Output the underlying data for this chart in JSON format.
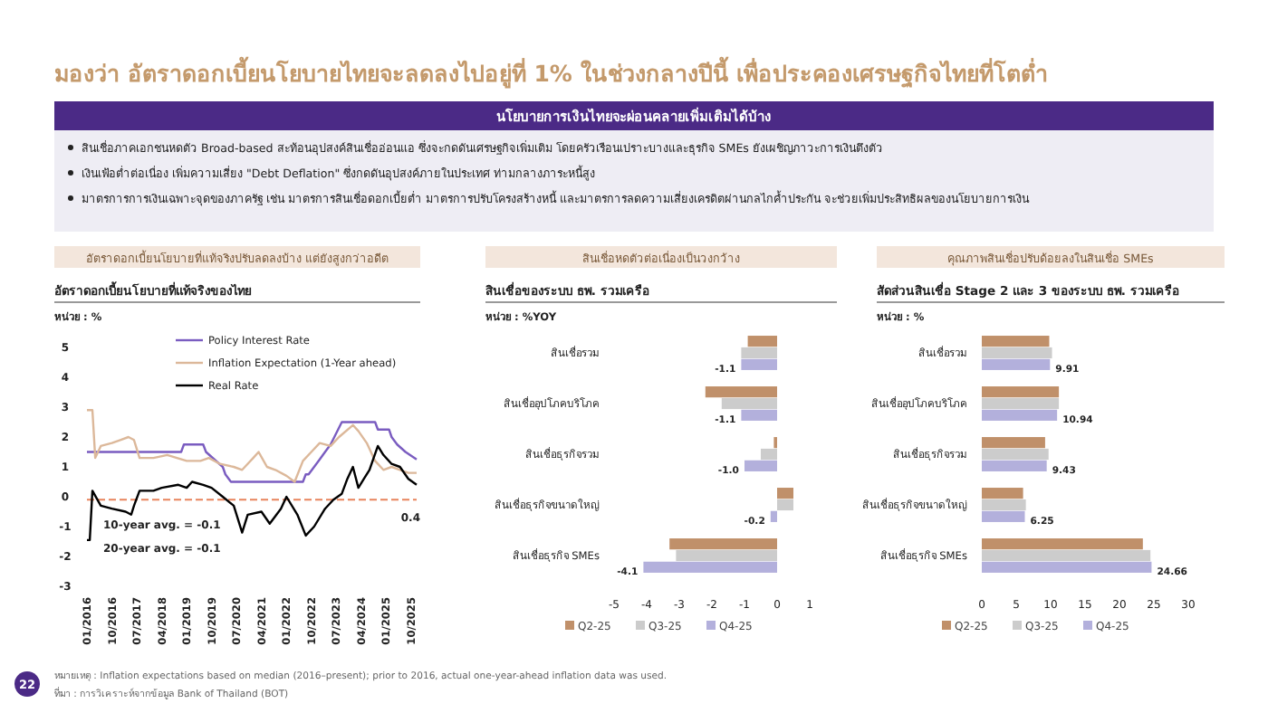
{
  "chart_data": [
    {
      "type": "other",
      "title": "มองว่า อัตราดอกเบี้ยนโยบายไทยจะลดลงไปอยู่ที่ 1% ในช่วงกลางปีนี้ เพื่อประคองเศรษฐกิจไทยที่โตต่ำ",
      "subtitle": "นโยบายการเงินไทยจะผ่อนคลายเพิ่มเติมได้บ้าง",
      "annotations": [
        "สินเชื่อภาคเอกชนหดตัว Broad-based สะท้อนอุปสงค์สินเชื่ออ่อนแอ ซึ่งจะกดดันเศรษฐกิจเพิ่มเติม โดยครัวเรือนเปราะบางและธุรกิจ SMEs ยังเผชิญภาวะการเงินตึงตัว",
        "เงินเฟ้อต่ำต่อเนื่อง เพิ่มความเสี่ยง \"Debt Deflation\" ซึ่งกดดันอุปสงค์ภายในประเทศ ท่ามกลางภาระหนี้สูง",
        "มาตรการการเงินเฉพาะจุดของภาครัฐ เช่น มาตรการสินเชื่อดอกเบี้ยต่ำ มาตรการปรับโครงสร้างหนี้ และมาตรการลดความเสี่ยงเครดิตผ่านกลไกค้ำประกัน จะช่วยเพิ่มประสิทธิผลของนโยบายการเงิน",
        "หมายเหตุ : Inflation expectations based on median (2016–present); prior to 2016, actual one-year-ahead inflation data was used.",
        "ที่มา : การวิเคราะห์จากข้อมูล Bank of Thailand (BOT)",
        "22"
      ]
    },
    {
      "type": "line",
      "title": "อัตราดอกเบี้ยนโยบายที่แท้จริงปรับลดลงบ้าง แต่ยังสูงกว่าอดีต",
      "subtitle": "อัตราดอกเบี้ยนโยบายที่แท้จริงของไทย",
      "ylabel": "หน่วย : %",
      "xlim": [
        "2016-01",
        "2025-12"
      ],
      "xticks": [
        {
          "value": "2016-01",
          "label": "01/2016"
        },
        {
          "value": "2016-10",
          "label": "10/2016"
        },
        {
          "value": "2017-07",
          "label": "07/2017"
        },
        {
          "value": "2018-04",
          "label": "04/2018"
        },
        {
          "value": "2019-01",
          "label": "01/2019"
        },
        {
          "value": "2019-10",
          "label": "10/2019"
        },
        {
          "value": "2020-07",
          "label": "07/2020"
        },
        {
          "value": "2021-04",
          "label": "04/2021"
        },
        {
          "value": "2022-01",
          "label": "01/2022"
        },
        {
          "value": "2022-10",
          "label": "10/2022"
        },
        {
          "value": "2023-07",
          "label": "07/2023"
        },
        {
          "value": "2024-04",
          "label": "04/2024"
        },
        {
          "value": "2025-01",
          "label": "01/2025"
        },
        {
          "value": "2025-10",
          "label": "10/2025"
        }
      ],
      "ylim": [
        -3,
        5
      ],
      "yticks": [
        -3,
        -2,
        -1,
        0,
        1,
        2,
        3,
        4,
        5
      ],
      "legend": "top right",
      "grid": false,
      "series": [
        {
          "name": "Policy Interest Rate",
          "color": "#7a5cc0",
          "x": [
            "2016-01",
            "2018-11",
            "2018-12",
            "2019-07",
            "2019-08",
            "2019-11",
            "2020-02",
            "2020-03",
            "2020-05",
            "2022-07",
            "2022-08",
            "2022-09",
            "2022-11",
            "2023-01",
            "2023-03",
            "2023-05",
            "2023-09",
            "2024-09",
            "2024-10",
            "2025-02",
            "2025-03",
            "2025-05",
            "2025-08",
            "2025-12"
          ],
          "values": [
            1.5,
            1.5,
            1.75,
            1.75,
            1.5,
            1.25,
            1.0,
            0.75,
            0.5,
            0.5,
            0.75,
            0.75,
            1.0,
            1.25,
            1.5,
            1.75,
            2.5,
            2.5,
            2.25,
            2.25,
            2.0,
            1.75,
            1.5,
            1.25
          ]
        },
        {
          "name": "Inflation Expectation (1-Year ahead)",
          "color": "#dcb89a",
          "x": [
            "2016-01",
            "2016-03",
            "2016-04",
            "2016-06",
            "2016-10",
            "2017-01",
            "2017-04",
            "2017-06",
            "2017-08",
            "2018-01",
            "2018-06",
            "2019-01",
            "2019-06",
            "2019-09",
            "2020-01",
            "2020-06",
            "2020-09",
            "2021-01",
            "2021-03",
            "2021-06",
            "2021-09",
            "2022-01",
            "2022-04",
            "2022-07",
            "2022-10",
            "2023-01",
            "2023-05",
            "2023-08",
            "2024-01",
            "2024-03",
            "2024-06",
            "2024-09",
            "2024-12",
            "2025-03",
            "2025-06",
            "2025-09",
            "2025-12"
          ],
          "values": [
            2.9,
            2.9,
            1.3,
            1.7,
            1.8,
            1.9,
            2.0,
            1.9,
            1.3,
            1.3,
            1.4,
            1.2,
            1.2,
            1.3,
            1.1,
            1.0,
            0.9,
            1.3,
            1.5,
            1.0,
            0.9,
            0.7,
            0.5,
            1.2,
            1.5,
            1.8,
            1.7,
            2.0,
            2.4,
            2.2,
            1.8,
            1.2,
            0.9,
            1.0,
            0.9,
            0.8,
            0.8
          ]
        },
        {
          "name": "Real Rate",
          "color": "#000000",
          "x": [
            "2016-01",
            "2016-02",
            "2016-03",
            "2016-06",
            "2016-10",
            "2017-03",
            "2017-05",
            "2017-06",
            "2017-08",
            "2018-01",
            "2018-04",
            "2018-10",
            "2019-01",
            "2019-03",
            "2019-07",
            "2019-10",
            "2020-02",
            "2020-06",
            "2020-09",
            "2020-11",
            "2021-04",
            "2021-07",
            "2021-11",
            "2022-01",
            "2022-05",
            "2022-08",
            "2022-11",
            "2023-03",
            "2023-06",
            "2023-09",
            "2023-11",
            "2024-01",
            "2024-03",
            "2024-05",
            "2024-07",
            "2024-10",
            "2024-12",
            "2025-03",
            "2025-06",
            "2025-09",
            "2025-12"
          ],
          "values": [
            -1.45,
            -1.45,
            0.2,
            -0.3,
            -0.4,
            -0.5,
            -0.6,
            -0.3,
            0.2,
            0.2,
            0.3,
            0.4,
            0.3,
            0.5,
            0.4,
            0.3,
            0.0,
            -0.3,
            -1.2,
            -0.6,
            -0.5,
            -0.9,
            -0.4,
            0.0,
            -0.6,
            -1.3,
            -1.0,
            -0.4,
            -0.1,
            0.1,
            0.6,
            1.0,
            0.3,
            0.6,
            0.9,
            1.7,
            1.4,
            1.1,
            1.0,
            0.6,
            0.4
          ]
        }
      ],
      "ref_lines": [
        {
          "axis": "y",
          "value": -0.1,
          "color": "#e8845c",
          "line_style": "dashed"
        }
      ],
      "annotations": [
        "10-year avg. = -0.1",
        "20-year avg. = -0.1",
        {
          "text": "0.4",
          "x": "2025-12",
          "y": 0.4
        }
      ]
    },
    {
      "type": "bar",
      "orientation": "horizontal",
      "title": "สินเชื่อหดตัวต่อเนื่องเป็นวงกว้าง",
      "subtitle": "สินเชื่อของระบบ ธพ. รวมเครือ",
      "xlabel": "หน่วย : %YOY",
      "categories": [
        "สินเชื่อรวม",
        "สินเชื่ออุปโภคบริโภค",
        "สินเชื่อธุรกิจรวม",
        "สินเชื่อธุรกิจขนาดใหญ่",
        "สินเชื่อธุรกิจ SMEs"
      ],
      "xlim": [
        -5,
        1
      ],
      "xticks": [
        -5,
        -4,
        -3,
        -2,
        -1,
        0,
        1
      ],
      "legend": "bottom",
      "series": [
        {
          "name": "Q2-25",
          "color": "#c0906a",
          "values": [
            -0.9,
            -2.2,
            -0.1,
            0.5,
            -3.3
          ]
        },
        {
          "name": "Q3-25",
          "color": "#cccccc",
          "values": [
            -1.1,
            -1.7,
            -0.5,
            0.5,
            -3.1
          ]
        },
        {
          "name": "Q4-25",
          "color": "#b3b0dc",
          "values": [
            -1.1,
            -1.1,
            -1.0,
            -0.2,
            -4.1
          ],
          "value_labels": [
            "-1.1",
            "-1.1",
            "-1.0",
            "-0.2",
            "-4.1"
          ]
        }
      ]
    },
    {
      "type": "bar",
      "orientation": "horizontal",
      "title": "คุณภาพสินเชื่อปรับด้อยลงในสินเชื่อ SMEs",
      "subtitle": "สัดส่วนสินเชื่อ Stage 2 และ 3 ของระบบ ธพ. รวมเครือ",
      "xlabel": "หน่วย : %",
      "categories": [
        "สินเชื่อรวม",
        "สินเชื่ออุปโภคบริโภค",
        "สินเชื่อธุรกิจรวม",
        "สินเชื่อธุรกิจขนาดใหญ่",
        "สินเชื่อธุรกิจ SMEs"
      ],
      "xlim": [
        0,
        30
      ],
      "xticks": [
        0,
        5,
        10,
        15,
        20,
        25,
        30
      ],
      "legend": "bottom",
      "series": [
        {
          "name": "Q2-25",
          "color": "#c0906a",
          "values": [
            9.8,
            11.2,
            9.2,
            6.0,
            23.4
          ]
        },
        {
          "name": "Q3-25",
          "color": "#cccccc",
          "values": [
            10.2,
            11.2,
            9.7,
            6.4,
            24.5
          ]
        },
        {
          "name": "Q4-25",
          "color": "#b3b0dc",
          "values": [
            9.91,
            10.94,
            9.43,
            6.25,
            24.66
          ],
          "value_labels": [
            "9.91",
            "10.94",
            "9.43",
            "6.25",
            "24.66"
          ]
        }
      ]
    }
  ]
}
